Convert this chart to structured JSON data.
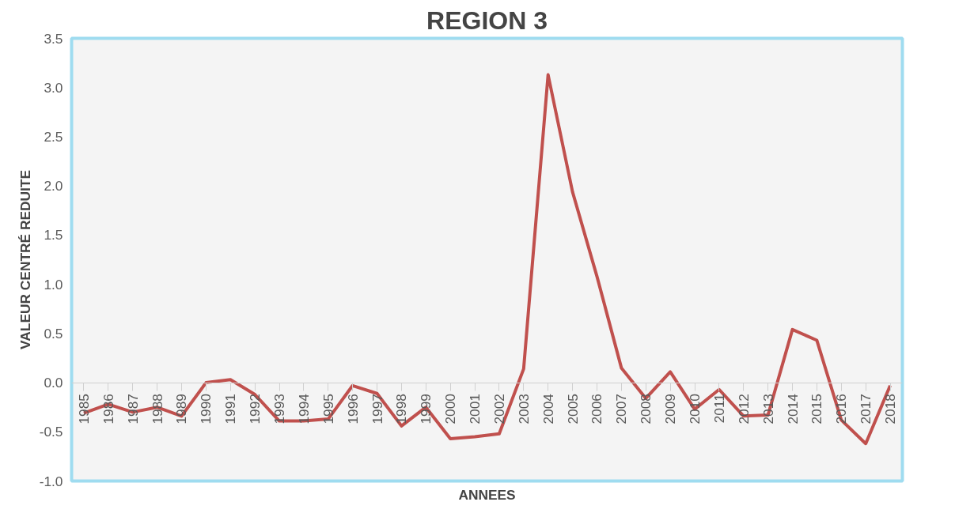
{
  "chart_data": {
    "type": "line",
    "title": "REGION 3",
    "xlabel": "ANNEES",
    "ylabel": "VALEUR CENTRÉ REDUITE",
    "categories": [
      "1985",
      "1986",
      "1987",
      "1988",
      "1989",
      "1990",
      "1991",
      "1992",
      "1993",
      "1994",
      "1995",
      "1996",
      "1997",
      "1998",
      "1999",
      "2000",
      "2001",
      "2002",
      "2003",
      "2004",
      "2005",
      "2006",
      "2007",
      "2008",
      "2009",
      "2010",
      "2011",
      "2012",
      "2013",
      "2014",
      "2015",
      "2016",
      "2017",
      "2018"
    ],
    "series": [
      {
        "color": "#c0504d",
        "values": [
          -0.31,
          -0.22,
          -0.3,
          -0.25,
          -0.34,
          0.0,
          0.03,
          -0.12,
          -0.39,
          -0.39,
          -0.37,
          -0.03,
          -0.11,
          -0.44,
          -0.25,
          -0.57,
          -0.55,
          -0.52,
          0.14,
          3.13,
          1.94,
          1.08,
          0.15,
          -0.16,
          0.11,
          -0.27,
          -0.07,
          -0.34,
          -0.33,
          0.54,
          0.43,
          -0.38,
          -0.62,
          -0.03
        ]
      }
    ],
    "ylim": [
      -1.0,
      3.5
    ],
    "yticks": [
      {
        "value": -1.0,
        "label": "-1.0"
      },
      {
        "value": -0.5,
        "label": "-0.5"
      },
      {
        "value": 0,
        "label": "0.0"
      },
      {
        "value": 0.5,
        "label": "0.5"
      },
      {
        "value": 1.0,
        "label": "1.0"
      },
      {
        "value": 1.5,
        "label": "1.5"
      },
      {
        "value": 2.0,
        "label": "2.0"
      },
      {
        "value": 2.5,
        "label": "2.5"
      },
      {
        "value": 3.0,
        "label": "3.0"
      },
      {
        "value": 3.5,
        "label": "3.5"
      }
    ],
    "grid": false
  }
}
